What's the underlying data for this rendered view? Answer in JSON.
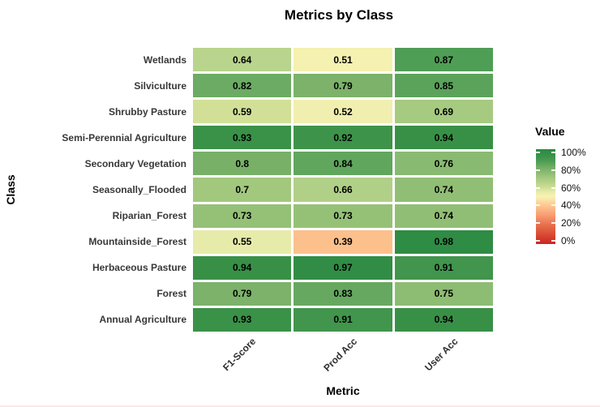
{
  "title": "Metrics by Class",
  "axes": {
    "x_title": "Metric",
    "y_title": "Class"
  },
  "legend": {
    "title": "Value",
    "tick_labels": [
      "100%",
      "80%",
      "60%",
      "40%",
      "20%",
      "0%"
    ]
  },
  "colors": {
    "background": "#ffffff",
    "axis_text": "#383838",
    "cell_text": "#000000",
    "scale_stops": [
      {
        "t": 0.0,
        "c": "#ca2427"
      },
      {
        "t": 0.1,
        "c": "#d84b33"
      },
      {
        "t": 0.2,
        "c": "#e76f4d"
      },
      {
        "t": 0.3,
        "c": "#f79a70"
      },
      {
        "t": 0.4,
        "c": "#fdc48f"
      },
      {
        "t": 0.5,
        "c": "#f8f2b2"
      },
      {
        "t": 0.55,
        "c": "#e7ebaa"
      },
      {
        "t": 0.59,
        "c": "#d2e097"
      },
      {
        "t": 0.64,
        "c": "#b9d48c"
      },
      {
        "t": 0.7,
        "c": "#a2c87e"
      },
      {
        "t": 0.8,
        "c": "#78b068"
      },
      {
        "t": 0.87,
        "c": "#4f9e55"
      },
      {
        "t": 0.93,
        "c": "#3a9148"
      },
      {
        "t": 1.0,
        "c": "#2b8a42"
      }
    ]
  },
  "chart_data": {
    "type": "heatmap",
    "title": "Metrics by Class",
    "xlabel": "Metric",
    "ylabel": "Class",
    "legend_title": "Value",
    "legend_position": "right",
    "grid": false,
    "colormap": "RdYlGn",
    "value_range": [
      0,
      1
    ],
    "x_categories": [
      "F1-Score",
      "Prod Acc",
      "User Acc"
    ],
    "y_categories_top_to_bottom": [
      "Wetlands",
      "Silviculture",
      "Shrubby Pasture",
      "Semi-Perennial Agriculture",
      "Secondary Vegetation",
      "Seasonally_Flooded",
      "Riparian_Forest",
      "Mountainside_Forest",
      "Herbaceous Pasture",
      "Forest",
      "Annual Agriculture"
    ],
    "series": [
      {
        "name": "Wetlands",
        "values": [
          0.64,
          0.51,
          0.87
        ]
      },
      {
        "name": "Silviculture",
        "values": [
          0.82,
          0.79,
          0.85
        ]
      },
      {
        "name": "Shrubby Pasture",
        "values": [
          0.59,
          0.52,
          0.69
        ]
      },
      {
        "name": "Semi-Perennial Agriculture",
        "values": [
          0.93,
          0.92,
          0.94
        ]
      },
      {
        "name": "Secondary Vegetation",
        "values": [
          0.8,
          0.84,
          0.76
        ]
      },
      {
        "name": "Seasonally_Flooded",
        "values": [
          0.7,
          0.66,
          0.74
        ]
      },
      {
        "name": "Riparian_Forest",
        "values": [
          0.73,
          0.73,
          0.74
        ]
      },
      {
        "name": "Mountainside_Forest",
        "values": [
          0.55,
          0.39,
          0.98
        ]
      },
      {
        "name": "Herbaceous Pasture",
        "values": [
          0.94,
          0.97,
          0.91
        ]
      },
      {
        "name": "Forest",
        "values": [
          0.79,
          0.83,
          0.75
        ]
      },
      {
        "name": "Annual Agriculture",
        "values": [
          0.93,
          0.91,
          0.94
        ]
      }
    ]
  }
}
